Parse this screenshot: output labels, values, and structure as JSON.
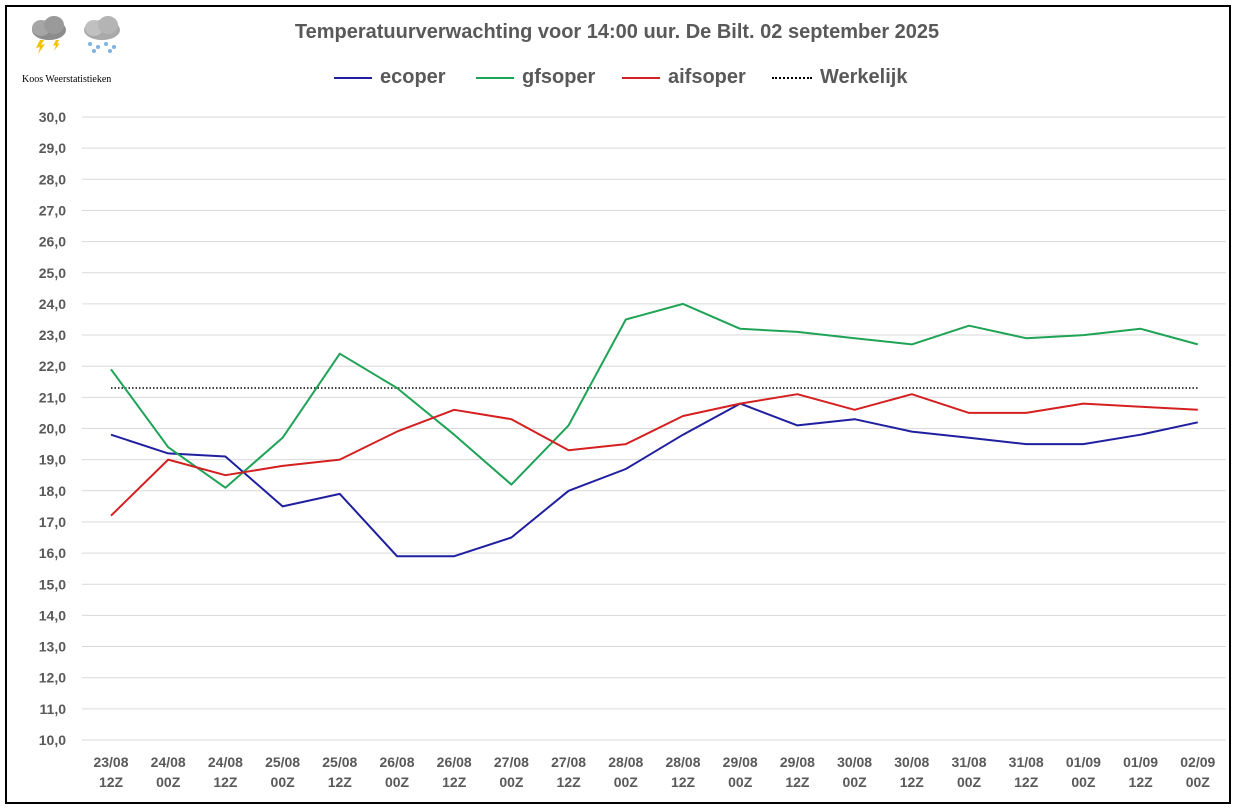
{
  "attribution": "Koos Weerstatistieken",
  "chart_data": {
    "type": "line",
    "title": "Temperatuurverwachting voor 14:00 uur. De Bilt. 02 september 2025",
    "xlabel": "",
    "ylabel": "",
    "ylim": [
      10,
      30
    ],
    "yticks": [
      "10,0",
      "11,0",
      "12,0",
      "13,0",
      "14,0",
      "15,0",
      "16,0",
      "17,0",
      "18,0",
      "19,0",
      "20,0",
      "21,0",
      "22,0",
      "23,0",
      "24,0",
      "25,0",
      "26,0",
      "27,0",
      "28,0",
      "29,0",
      "30,0"
    ],
    "categories": [
      [
        "23/08",
        "12Z"
      ],
      [
        "24/08",
        "00Z"
      ],
      [
        "24/08",
        "12Z"
      ],
      [
        "25/08",
        "00Z"
      ],
      [
        "25/08",
        "12Z"
      ],
      [
        "26/08",
        "00Z"
      ],
      [
        "26/08",
        "12Z"
      ],
      [
        "27/08",
        "00Z"
      ],
      [
        "27/08",
        "12Z"
      ],
      [
        "28/08",
        "00Z"
      ],
      [
        "28/08",
        "12Z"
      ],
      [
        "29/08",
        "00Z"
      ],
      [
        "29/08",
        "12Z"
      ],
      [
        "30/08",
        "00Z"
      ],
      [
        "30/08",
        "12Z"
      ],
      [
        "31/08",
        "00Z"
      ],
      [
        "31/08",
        "12Z"
      ],
      [
        "01/09",
        "00Z"
      ],
      [
        "01/09",
        "12Z"
      ],
      [
        "02/09",
        "00Z"
      ]
    ],
    "grid": true,
    "legend_position": "top",
    "series": [
      {
        "name": "ecoper",
        "color": "#1f1fa0",
        "values": [
          19.8,
          19.2,
          19.1,
          17.5,
          17.9,
          15.9,
          15.9,
          16.5,
          18.0,
          18.7,
          19.8,
          20.8,
          20.1,
          20.3,
          19.9,
          19.7,
          19.5,
          19.5,
          19.8,
          20.2
        ]
      },
      {
        "name": "gfsoper",
        "color": "#1fa356",
        "values": [
          21.9,
          19.4,
          18.1,
          19.7,
          22.4,
          21.3,
          19.8,
          18.2,
          20.1,
          23.5,
          24.0,
          23.2,
          23.1,
          22.9,
          22.7,
          23.3,
          22.9,
          23.0,
          23.2,
          22.7
        ]
      },
      {
        "name": "aifsoper",
        "color": "#d42020",
        "values": [
          17.2,
          19.0,
          18.5,
          18.8,
          19.0,
          19.9,
          20.6,
          20.3,
          19.3,
          19.5,
          20.4,
          20.8,
          21.1,
          20.6,
          21.1,
          20.5,
          20.5,
          20.8,
          20.7,
          20.6
        ]
      },
      {
        "name": "Werkelijk",
        "color": "#000000",
        "style": "dotted",
        "values": [
          21.3,
          21.3,
          21.3,
          21.3,
          21.3,
          21.3,
          21.3,
          21.3,
          21.3,
          21.3,
          21.3,
          21.3,
          21.3,
          21.3,
          21.3,
          21.3,
          21.3,
          21.3,
          21.3,
          21.3
        ]
      }
    ]
  }
}
